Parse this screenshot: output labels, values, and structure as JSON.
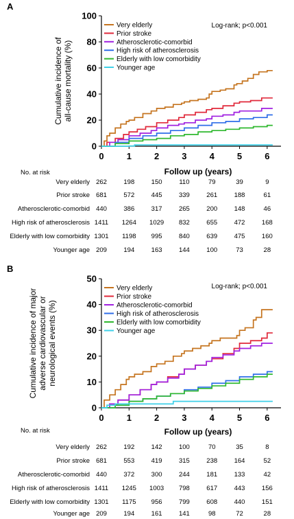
{
  "chart_data": [
    {
      "panel_label": "A",
      "type": "line",
      "ylabel_lines": [
        "Cumulative incidence of",
        "all-cause mortality (%)"
      ],
      "xlabel": "Follow up (years)",
      "xlim": [
        0,
        6.5
      ],
      "ylim": [
        0,
        100
      ],
      "xticks": [
        "0",
        "1",
        "2",
        "3",
        "4",
        "5",
        "6"
      ],
      "yticks": [
        "0",
        "20",
        "40",
        "60",
        "80",
        "100"
      ],
      "annotation": "Log-rank; p<0.001",
      "legend_position": "top-left",
      "grid": false,
      "series": [
        {
          "name": "Very elderly",
          "color": "#c5741f",
          "x": [
            0,
            0.1,
            0.2,
            0.3,
            0.5,
            0.7,
            0.9,
            1.0,
            1.2,
            1.5,
            1.8,
            2.0,
            2.3,
            2.6,
            2.9,
            3.0,
            3.2,
            3.5,
            3.8,
            3.9,
            4.0,
            4.3,
            4.5,
            4.8,
            4.9,
            5.1,
            5.3,
            5.5,
            5.7,
            6.0,
            6.2
          ],
          "y": [
            0,
            4,
            8,
            10,
            14,
            17,
            19,
            20,
            22,
            25,
            27,
            29,
            30,
            32,
            33,
            34,
            35,
            36,
            37,
            40,
            42,
            43,
            44,
            47,
            48,
            50,
            52,
            55,
            57,
            58,
            58
          ]
        },
        {
          "name": "Prior stroke",
          "color": "#e0283a",
          "x": [
            0,
            0.2,
            0.5,
            0.8,
            1.0,
            1.3,
            1.6,
            2.0,
            2.4,
            2.8,
            3.0,
            3.4,
            3.8,
            4.0,
            4.4,
            4.8,
            5.0,
            5.4,
            5.8,
            6.2
          ],
          "y": [
            0,
            3,
            6,
            9,
            11,
            13,
            15,
            18,
            20,
            22,
            24,
            26,
            28,
            29,
            31,
            33,
            34,
            35,
            37,
            37
          ]
        },
        {
          "name": "Atherosclerotic-comorbid",
          "color": "#a020e0",
          "x": [
            0,
            0.3,
            0.6,
            1.0,
            1.4,
            1.8,
            2.0,
            2.4,
            2.8,
            3.0,
            3.4,
            3.8,
            4.0,
            4.4,
            4.8,
            5.0,
            5.4,
            5.8,
            6.2
          ],
          "y": [
            0,
            3,
            5,
            8,
            10,
            12,
            14,
            16,
            17,
            18,
            20,
            21,
            23,
            24,
            26,
            27,
            27,
            29,
            29
          ]
        },
        {
          "name": "High risk of atherosclerosis",
          "color": "#2f6ee8",
          "x": [
            0,
            0.5,
            1.0,
            1.5,
            2.0,
            2.5,
            3.0,
            3.5,
            4.0,
            4.5,
            5.0,
            5.5,
            6.0,
            6.2
          ],
          "y": [
            0,
            3,
            6,
            8,
            10,
            12,
            14,
            16,
            18,
            19,
            21,
            22,
            24,
            24
          ]
        },
        {
          "name": "Elderly with low comorbidity",
          "color": "#2fb82f",
          "x": [
            0,
            0.5,
            1.0,
            1.5,
            2.0,
            2.5,
            3.0,
            3.5,
            4.0,
            4.5,
            5.0,
            5.5,
            6.0,
            6.2
          ],
          "y": [
            0,
            2,
            4,
            5,
            6,
            8,
            9,
            11,
            12,
            13,
            14,
            15,
            16,
            16
          ]
        },
        {
          "name": "Younger age",
          "color": "#3fd0e8",
          "x": [
            0,
            1.0,
            1.2,
            3.0,
            6.2
          ],
          "y": [
            0,
            0.2,
            1,
            1,
            1
          ]
        }
      ],
      "at_risk": {
        "title": "No. at risk",
        "rows": [
          {
            "label": "Very elderly",
            "values": [
              "262",
              "198",
              "150",
              "110",
              "79",
              "39",
              "9"
            ]
          },
          {
            "label": "Prior stroke",
            "values": [
              "681",
              "572",
              "445",
              "339",
              "261",
              "188",
              "61"
            ]
          },
          {
            "label": "Atherosclerotic-comorbid",
            "values": [
              "440",
              "386",
              "317",
              "265",
              "200",
              "148",
              "46"
            ]
          },
          {
            "label": "High risk of atherosclerosis",
            "values": [
              "1411",
              "1264",
              "1029",
              "832",
              "655",
              "472",
              "168"
            ]
          },
          {
            "label": "Elderly with low comorbidity",
            "values": [
              "1301",
              "1198",
              "995",
              "840",
              "639",
              "475",
              "160"
            ]
          },
          {
            "label": "Younger age",
            "values": [
              "209",
              "194",
              "163",
              "144",
              "100",
              "73",
              "28"
            ]
          }
        ]
      }
    },
    {
      "panel_label": "B",
      "type": "line",
      "ylabel_lines": [
        "Cumulative incidence of  major",
        "adverse cardiovascular or",
        "neurological events (%)"
      ],
      "xlabel": "Follow up (years)",
      "xlim": [
        0,
        6.5
      ],
      "ylim": [
        0,
        50
      ],
      "xticks": [
        "0",
        "1",
        "2",
        "3",
        "4",
        "5",
        "6"
      ],
      "yticks": [
        "0",
        "10",
        "20",
        "30",
        "40",
        "50"
      ],
      "annotation": "Log-rank; p<0.001",
      "legend_position": "top-left",
      "grid": false,
      "series": [
        {
          "name": "Very elderly",
          "color": "#c5741f",
          "x": [
            0,
            0.1,
            0.3,
            0.5,
            0.7,
            0.9,
            1.0,
            1.2,
            1.5,
            1.8,
            2.0,
            2.3,
            2.6,
            2.9,
            3.0,
            3.3,
            3.6,
            3.9,
            4.0,
            4.3,
            4.6,
            4.9,
            5.0,
            5.2,
            5.5,
            5.6,
            5.8,
            6.0,
            6.2
          ],
          "y": [
            0,
            3,
            5,
            7,
            9,
            11,
            12,
            13,
            14,
            16,
            17,
            18,
            20,
            21,
            22,
            23,
            24,
            25,
            26,
            27,
            27,
            28,
            30,
            31,
            34,
            35,
            38,
            38,
            38
          ]
        },
        {
          "name": "Prior stroke",
          "color": "#e0283a",
          "x": [
            0,
            0.3,
            0.6,
            1.0,
            1.4,
            1.8,
            2.0,
            2.4,
            2.8,
            3.0,
            3.4,
            3.8,
            4.0,
            4.4,
            4.8,
            5.0,
            5.4,
            5.8,
            6.0,
            6.2
          ],
          "y": [
            0,
            1.5,
            3,
            5,
            7,
            9,
            10,
            12,
            13,
            15,
            16.5,
            18,
            19,
            21,
            23,
            25,
            26,
            27,
            29,
            29
          ]
        },
        {
          "name": "Atherosclerotic-comorbid",
          "color": "#a020e0",
          "x": [
            0,
            0.3,
            0.6,
            1.0,
            1.4,
            1.8,
            2.0,
            2.4,
            2.8,
            3.0,
            3.4,
            3.8,
            4.0,
            4.4,
            4.8,
            5.0,
            5.4,
            5.8,
            6.2
          ],
          "y": [
            0,
            1.5,
            3,
            5,
            7,
            9,
            10,
            11.5,
            13,
            15,
            16.5,
            18,
            19.5,
            20.5,
            22,
            23,
            24,
            25,
            25
          ]
        },
        {
          "name": "High risk of atherosclerosis",
          "color": "#2f6ee8",
          "x": [
            0,
            0.5,
            1.0,
            1.5,
            2.0,
            2.5,
            3.0,
            3.5,
            4.0,
            4.5,
            5.0,
            5.5,
            6.0,
            6.2
          ],
          "y": [
            0,
            1,
            2.5,
            3.5,
            4.5,
            5.5,
            7,
            8,
            9.5,
            10.5,
            12,
            13,
            14,
            14
          ]
        },
        {
          "name": "Elderly with low comorbidity",
          "color": "#2fb82f",
          "x": [
            0,
            0.5,
            1.0,
            1.5,
            2.0,
            2.5,
            3.0,
            3.5,
            4.0,
            4.5,
            5.0,
            5.5,
            6.0,
            6.2
          ],
          "y": [
            0,
            1,
            2.5,
            3.5,
            4.5,
            5.5,
            6.5,
            7.5,
            8.5,
            9.5,
            11,
            12,
            13,
            13
          ]
        },
        {
          "name": "Younger age",
          "color": "#3fd0e8",
          "x": [
            0,
            0.2,
            0.5,
            2.5,
            2.6,
            6.2
          ],
          "y": [
            0,
            1,
            1.5,
            1.5,
            2.5,
            2.5
          ]
        }
      ],
      "at_risk": {
        "title": "No. at risk",
        "rows": [
          {
            "label": "Very elderly",
            "values": [
              "262",
              "192",
              "142",
              "100",
              "70",
              "35",
              "8"
            ]
          },
          {
            "label": "Prior stroke",
            "values": [
              "681",
              "553",
              "419",
              "315",
              "238",
              "164",
              "52"
            ]
          },
          {
            "label": "Atherosclerotic-comorbid",
            "values": [
              "440",
              "372",
              "300",
              "244",
              "181",
              "133",
              "42"
            ]
          },
          {
            "label": "High risk of atherosclerosis",
            "values": [
              "1411",
              "1245",
              "1003",
              "798",
              "617",
              "443",
              "156"
            ]
          },
          {
            "label": "Elderly with low comorbidity",
            "values": [
              "1301",
              "1175",
              "956",
              "799",
              "608",
              "440",
              "151"
            ]
          },
          {
            "label": "Younger age",
            "values": [
              "209",
              "194",
              "161",
              "141",
              "98",
              "72",
              "28"
            ]
          }
        ]
      }
    }
  ]
}
